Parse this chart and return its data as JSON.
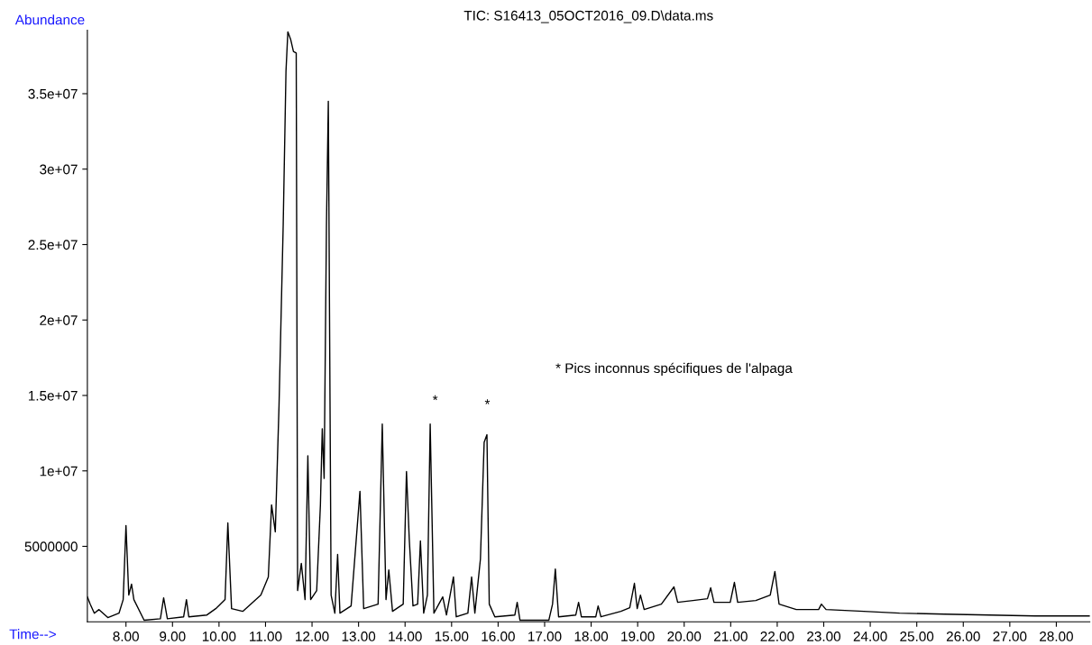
{
  "chart_data": {
    "type": "line",
    "title": "TIC: S16413_05OCT2016_09.D\\data.ms",
    "xlabel": "Time-->",
    "ylabel": "Abundance",
    "xlim": [
      7.17,
      28.72
    ],
    "ylim": [
      0,
      39200000
    ],
    "xticks": [
      {
        "value": 8,
        "label": "8.00"
      },
      {
        "value": 9,
        "label": "9.00"
      },
      {
        "value": 10,
        "label": "10.00"
      },
      {
        "value": 11,
        "label": "11.00"
      },
      {
        "value": 12,
        "label": "12.00"
      },
      {
        "value": 13,
        "label": "13.00"
      },
      {
        "value": 14,
        "label": "14.00"
      },
      {
        "value": 15,
        "label": "15.00"
      },
      {
        "value": 16,
        "label": "16.00"
      },
      {
        "value": 17,
        "label": "17.00"
      },
      {
        "value": 18,
        "label": "18.00"
      },
      {
        "value": 19,
        "label": "19.00"
      },
      {
        "value": 20,
        "label": "20.00"
      },
      {
        "value": 21,
        "label": "21.00"
      },
      {
        "value": 22,
        "label": "22.00"
      },
      {
        "value": 23,
        "label": "23.00"
      },
      {
        "value": 24,
        "label": "24.00"
      },
      {
        "value": 25,
        "label": "25.00"
      },
      {
        "value": 26,
        "label": "26.00"
      },
      {
        "value": 27,
        "label": "27.00"
      },
      {
        "value": 28,
        "label": "28.00"
      }
    ],
    "yticks": [
      5000000,
      {
        "value": 10000000,
        "label": "1e+07"
      },
      {
        "value": 15000000,
        "label": "1.5e+07"
      },
      {
        "value": 20000000,
        "label": "2e+07"
      },
      {
        "value": 25000000,
        "label": "2.5e+07"
      },
      {
        "value": 30000000,
        "label": "3e+07"
      },
      {
        "value": 35000000,
        "label": "3.5e+07"
      }
    ],
    "grid": false,
    "marker": "none",
    "line_style": "solid",
    "annotations": [
      "*",
      "*",
      "* Pics inconnus spécifiques de l'alpaga"
    ],
    "series": [
      {
        "color": "#000000",
        "x": [
          7.17,
          7.23,
          7.32,
          7.42,
          7.61,
          7.85,
          7.94,
          8.0,
          8.06,
          8.12,
          8.17,
          8.39,
          8.74,
          8.81,
          8.89,
          9.24,
          9.3,
          9.35,
          9.74,
          9.93,
          10.13,
          10.19,
          10.27,
          10.51,
          10.9,
          11.06,
          11.13,
          11.21,
          11.29,
          11.38,
          11.44,
          11.48,
          11.54,
          11.6,
          11.66,
          11.69,
          11.77,
          11.85,
          11.91,
          11.97,
          12.1,
          12.18,
          12.22,
          12.26,
          12.31,
          12.35,
          12.41,
          12.49,
          12.55,
          12.6,
          12.84,
          13.03,
          13.11,
          13.42,
          13.51,
          13.59,
          13.65,
          13.73,
          13.96,
          14.03,
          14.09,
          14.17,
          14.27,
          14.33,
          14.4,
          14.48,
          14.54,
          14.62,
          14.81,
          14.89,
          15.04,
          15.1,
          15.35,
          15.43,
          15.5,
          15.62,
          15.7,
          15.76,
          15.81,
          15.93,
          16.36,
          16.41,
          16.47,
          17.09,
          17.17,
          17.23,
          17.3,
          17.67,
          17.73,
          17.79,
          18.1,
          18.15,
          18.21,
          18.64,
          18.83,
          18.93,
          18.99,
          19.06,
          19.14,
          19.51,
          19.78,
          19.86,
          20.19,
          20.5,
          20.57,
          20.64,
          20.99,
          21.08,
          21.15,
          21.54,
          21.85,
          21.95,
          22.04,
          22.41,
          22.89,
          22.95,
          23.05,
          23.86,
          24.63,
          25.6,
          26.57,
          27.54,
          28.72
        ],
        "values": [
          1650000,
          1180000,
          570000,
          810000,
          280000,
          570000,
          1470000,
          6380000,
          1770000,
          2490000,
          1470000,
          100000,
          200000,
          1590000,
          200000,
          330000,
          1470000,
          330000,
          450000,
          870000,
          1470000,
          6550000,
          870000,
          690000,
          1770000,
          2970000,
          7750000,
          5960000,
          14300000,
          26300000,
          36500000,
          39100000,
          38600000,
          37800000,
          37700000,
          2070000,
          3870000,
          1470000,
          11000000,
          1470000,
          2070000,
          7750000,
          12800000,
          9500000,
          26300000,
          34500000,
          1770000,
          570000,
          4460000,
          570000,
          1050000,
          8650000,
          870000,
          1170000,
          13100000,
          1470000,
          3440000,
          690000,
          1170000,
          9960000,
          5480000,
          1050000,
          1170000,
          5360000,
          570000,
          1770000,
          13100000,
          570000,
          1650000,
          450000,
          2970000,
          330000,
          570000,
          2970000,
          570000,
          4160000,
          11900000,
          12400000,
          1170000,
          330000,
          450000,
          1290000,
          100000,
          100000,
          1170000,
          3500000,
          330000,
          450000,
          1290000,
          330000,
          330000,
          1050000,
          330000,
          690000,
          930000,
          2550000,
          870000,
          1770000,
          810000,
          1170000,
          2310000,
          1290000,
          1410000,
          1530000,
          2250000,
          1290000,
          1290000,
          2610000,
          1290000,
          1410000,
          1770000,
          3330000,
          1170000,
          810000,
          810000,
          1170000,
          810000,
          690000,
          570000,
          510000,
          450000,
          390000,
          390000
        ]
      }
    ]
  }
}
